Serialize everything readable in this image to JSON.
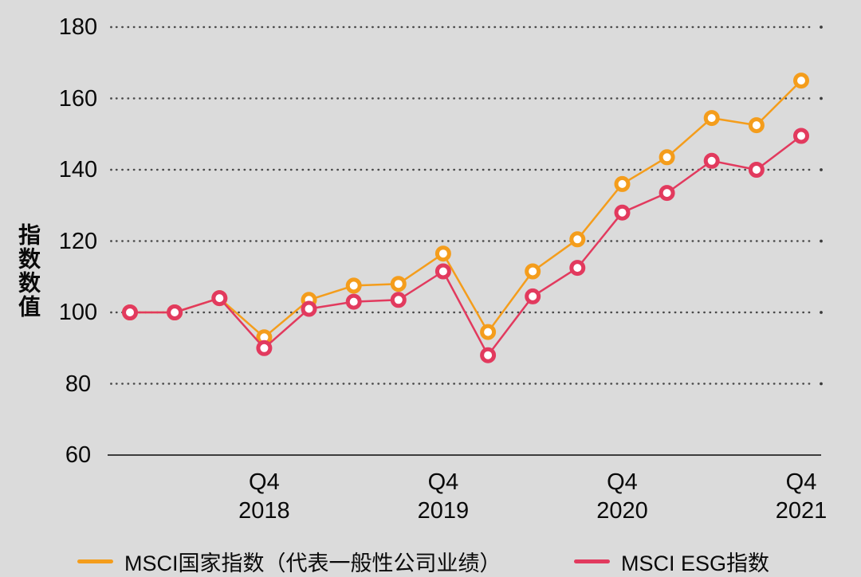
{
  "page": {
    "background_color": "#DBDBDB",
    "text_color": "#0a0a0a",
    "grid_color": "#4a4a4a",
    "axis_color": "#3c3c3c"
  },
  "chart_data": {
    "type": "line",
    "title": "",
    "ylabel": "指数数值",
    "xlabel": "",
    "ylim": [
      60,
      185
    ],
    "yticks": [
      180,
      160,
      140,
      120,
      100,
      80,
      60
    ],
    "grid": "dotted horizontal gridlines, solid bottom axis at 60",
    "n_points": 16,
    "x_description": "quarterly points from Q1 2018 to Q4 2021",
    "xticks": [
      {
        "index": 3,
        "line1": "Q4",
        "line2": "2018"
      },
      {
        "index": 7,
        "line1": "Q4",
        "line2": "2019"
      },
      {
        "index": 11,
        "line1": "Q4",
        "line2": "2020"
      },
      {
        "index": 15,
        "line1": "Q4",
        "line2": "2021"
      }
    ],
    "series": [
      {
        "name": "MSCI国家指数（代表一般性公司业绩）",
        "color": "#F49D1C",
        "values": [
          100,
          100,
          104,
          93,
          103.5,
          107.5,
          108,
          116.5,
          94.5,
          111.5,
          120.5,
          136,
          143.5,
          154.5,
          152.5,
          165
        ]
      },
      {
        "name": "MSCI ESG指数",
        "color": "#E23A5E",
        "values": [
          100,
          100,
          104,
          90,
          101,
          103,
          103.5,
          111.5,
          88,
          104.5,
          112.5,
          128,
          133.5,
          142.5,
          140,
          149.5
        ]
      }
    ],
    "legend_position": "bottom",
    "marker_style": "white-filled circle with thick colored ring"
  }
}
